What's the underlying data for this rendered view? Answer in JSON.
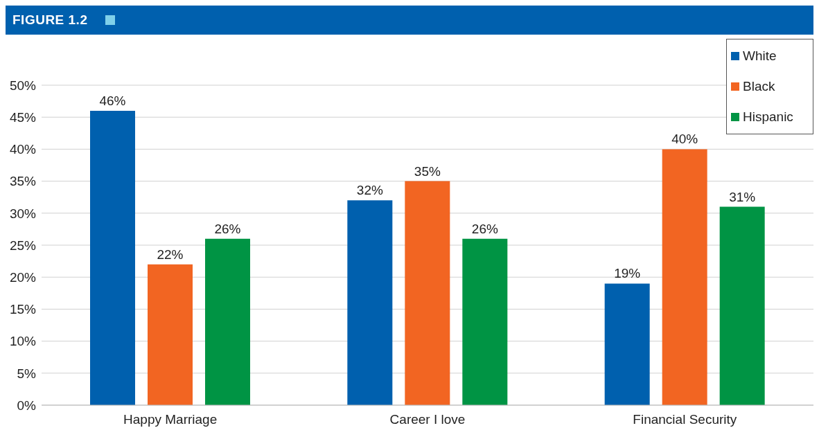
{
  "chart_data": {
    "type": "bar",
    "title": "FIGURE 1.2",
    "categories": [
      "Happy Marriage",
      "Career I love",
      "Financial Security"
    ],
    "series": [
      {
        "name": "White",
        "color": "#0060ae",
        "values": [
          46,
          32,
          19
        ],
        "value_labels": [
          "46%",
          "32%",
          "19%"
        ]
      },
      {
        "name": "Black",
        "color": "#f26522",
        "values": [
          22,
          35,
          40
        ],
        "value_labels": [
          "22%",
          "35%",
          "40%"
        ]
      },
      {
        "name": "Hispanic",
        "color": "#009444",
        "values": [
          26,
          26,
          31
        ],
        "value_labels": [
          "26%",
          "26%",
          "31%"
        ]
      }
    ],
    "ylim": [
      0,
      50
    ],
    "yticks": [
      {
        "value": 0,
        "label": "0%"
      },
      {
        "value": 5,
        "label": "5%"
      },
      {
        "value": 10,
        "label": "10%"
      },
      {
        "value": 15,
        "label": "15%"
      },
      {
        "value": 20,
        "label": "20%"
      },
      {
        "value": 25,
        "label": "25%"
      },
      {
        "value": 30,
        "label": "30%"
      },
      {
        "value": 35,
        "label": "35%"
      },
      {
        "value": 40,
        "label": "40%"
      },
      {
        "value": 45,
        "label": "45%"
      },
      {
        "value": 50,
        "label": "50%"
      }
    ],
    "grid": "y",
    "legend": "top right"
  }
}
